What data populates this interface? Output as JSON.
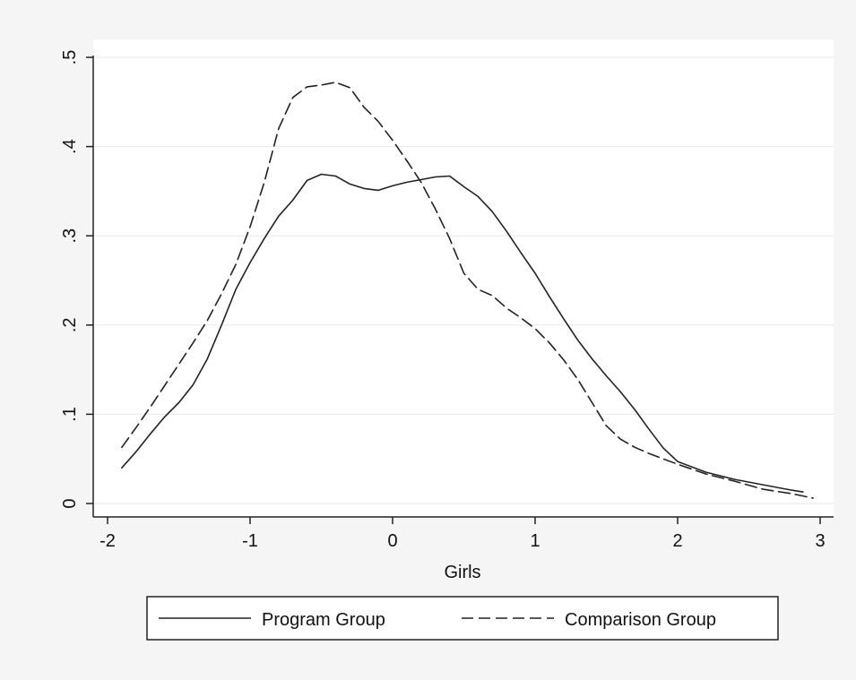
{
  "chart_data": {
    "type": "line",
    "title": "",
    "xlabel": "Girls",
    "ylabel": "",
    "xlim": [
      -2.1,
      3.1
    ],
    "ylim": [
      0,
      0.5
    ],
    "xticks": [
      -2,
      -1,
      0,
      1,
      2,
      3
    ],
    "xtick_labels": [
      "-2",
      "-1",
      "0",
      "1",
      "2",
      "3"
    ],
    "yticks": [
      0,
      0.1,
      0.2,
      0.3,
      0.4,
      0.5
    ],
    "ytick_labels": [
      "0",
      ".1",
      ".2",
      ".3",
      ".4",
      ".5"
    ],
    "grid": "horizontal",
    "legend_position": "bottom",
    "series": [
      {
        "name": "Program Group",
        "style": "solid",
        "color": "#222222",
        "x": [
          -1.9,
          -1.8,
          -1.7,
          -1.6,
          -1.5,
          -1.4,
          -1.3,
          -1.2,
          -1.1,
          -1.0,
          -0.9,
          -0.8,
          -0.7,
          -0.6,
          -0.5,
          -0.4,
          -0.3,
          -0.2,
          -0.1,
          0.0,
          0.1,
          0.2,
          0.3,
          0.4,
          0.5,
          0.6,
          0.7,
          0.8,
          0.9,
          1.0,
          1.1,
          1.2,
          1.3,
          1.4,
          1.5,
          1.6,
          1.7,
          1.8,
          1.9,
          2.0,
          2.2,
          2.4,
          2.6,
          2.8,
          2.88
        ],
        "y": [
          0.04,
          0.058,
          0.078,
          0.097,
          0.113,
          0.133,
          0.162,
          0.2,
          0.24,
          0.27,
          0.297,
          0.322,
          0.34,
          0.362,
          0.369,
          0.367,
          0.358,
          0.353,
          0.351,
          0.356,
          0.36,
          0.363,
          0.366,
          0.367,
          0.355,
          0.344,
          0.327,
          0.305,
          0.281,
          0.258,
          0.232,
          0.207,
          0.183,
          0.162,
          0.143,
          0.125,
          0.105,
          0.083,
          0.062,
          0.047,
          0.035,
          0.027,
          0.021,
          0.015,
          0.013
        ]
      },
      {
        "name": "Comparison Group",
        "style": "dashed",
        "color": "#222222",
        "x": [
          -1.9,
          -1.8,
          -1.7,
          -1.6,
          -1.5,
          -1.4,
          -1.3,
          -1.2,
          -1.1,
          -1.0,
          -0.9,
          -0.8,
          -0.7,
          -0.6,
          -0.5,
          -0.4,
          -0.3,
          -0.2,
          -0.1,
          0.0,
          0.1,
          0.2,
          0.3,
          0.4,
          0.5,
          0.6,
          0.7,
          0.8,
          0.9,
          1.0,
          1.1,
          1.2,
          1.3,
          1.4,
          1.5,
          1.6,
          1.7,
          1.8,
          1.9,
          2.0,
          2.2,
          2.4,
          2.6,
          2.8,
          2.95
        ],
        "y": [
          0.063,
          0.085,
          0.108,
          0.132,
          0.156,
          0.18,
          0.205,
          0.235,
          0.268,
          0.31,
          0.36,
          0.42,
          0.455,
          0.467,
          0.469,
          0.472,
          0.466,
          0.444,
          0.428,
          0.407,
          0.384,
          0.36,
          0.33,
          0.297,
          0.258,
          0.24,
          0.233,
          0.219,
          0.208,
          0.196,
          0.18,
          0.161,
          0.139,
          0.113,
          0.087,
          0.072,
          0.063,
          0.056,
          0.05,
          0.044,
          0.033,
          0.025,
          0.016,
          0.011,
          0.006
        ]
      }
    ]
  }
}
